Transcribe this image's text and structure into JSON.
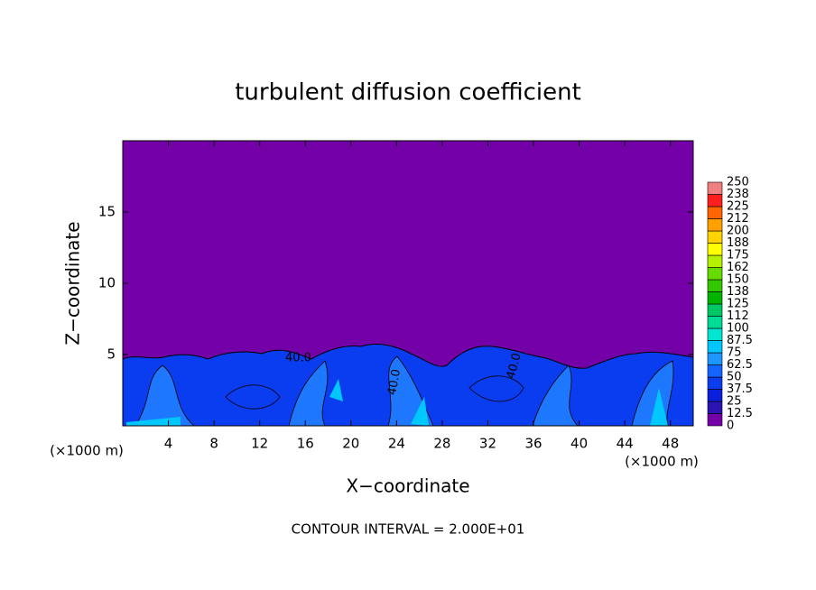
{
  "chart_data": {
    "type": "contour",
    "title": "turbulent diffusion coefficient",
    "xlabel": "X−coordinate",
    "ylabel": "Z−coordinate",
    "x_unit": "(×1000 m)",
    "note": "CONTOUR INTERVAL = 2.000E+01",
    "xlim": [
      0,
      50
    ],
    "ylim": [
      0,
      20
    ],
    "xticks": [
      4,
      8,
      12,
      16,
      20,
      24,
      28,
      32,
      36,
      40,
      44,
      48
    ],
    "yticks": [
      5,
      10,
      15
    ],
    "contour_labels": [
      "40.0",
      "40.0",
      "40.0"
    ],
    "levels": [
      0,
      12.5,
      25,
      37.5,
      50,
      62.5,
      75,
      87.5,
      100,
      112,
      125,
      138,
      150,
      162,
      175,
      188,
      200,
      212,
      225,
      238,
      250
    ],
    "colors": [
      "#7400a8",
      "#2a14b4",
      "#0a1edc",
      "#0a3cf0",
      "#1464ff",
      "#1e96ff",
      "#00c8ff",
      "#00e6d2",
      "#00dc96",
      "#00c864",
      "#00b400",
      "#32c800",
      "#64dc00",
      "#b4f000",
      "#ffff00",
      "#ffd200",
      "#ffa000",
      "#ff6400",
      "#ff1e1e",
      "#f08080"
    ]
  }
}
